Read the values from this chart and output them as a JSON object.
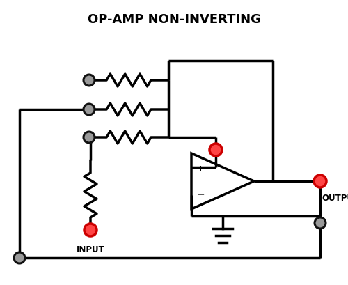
{
  "title": "OP-AMP NON-INVERTING",
  "title_fontsize": 13,
  "title_fontweight": "bold",
  "bg_color": "#ffffff",
  "line_color": "#000000",
  "line_width": 2.5,
  "dot_gray_fill": "#999999",
  "dot_gray_edge": "#111111",
  "dot_red_fill": "#ff4444",
  "dot_red_edge": "#cc0000",
  "output_label": "OUTPUT",
  "input_label": "INPUT",
  "label_fontsize": 8.5,
  "label_fontweight": "bold"
}
